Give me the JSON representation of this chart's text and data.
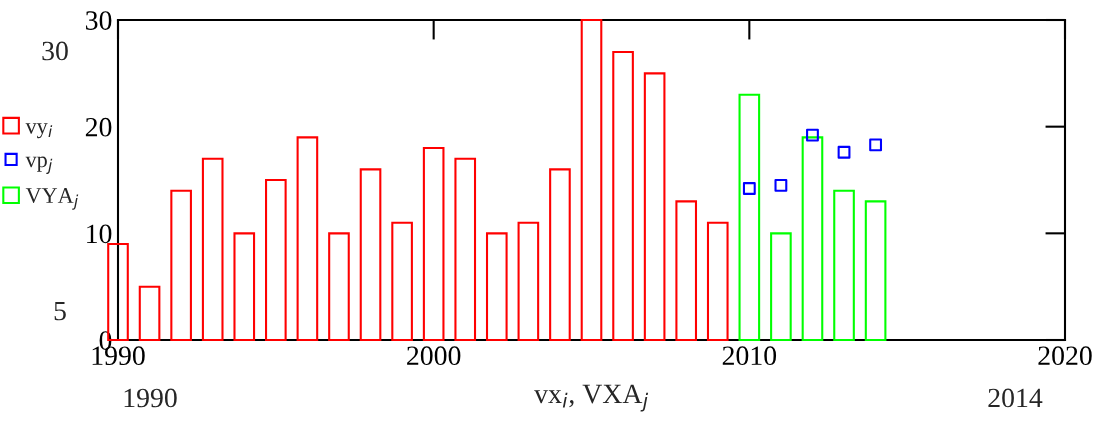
{
  "chart_data": {
    "type": "bar",
    "xlabel": "vx$_{i}$, VXA$_{j}$",
    "xlim": [
      1990,
      2020
    ],
    "xticks": [
      1990,
      2000,
      2010,
      2020
    ],
    "ylim": [
      0,
      30
    ],
    "yticks": [
      0,
      10,
      20,
      30
    ],
    "series": [
      {
        "name": "vy$_{i}$",
        "color": "#ff0000",
        "x": [
          1990,
          1991,
          1992,
          1993,
          1994,
          1995,
          1996,
          1997,
          1998,
          1999,
          2000,
          2001,
          2002,
          2003,
          2004,
          2005,
          2006,
          2007,
          2008,
          2009
        ],
        "values": [
          9,
          5,
          14,
          17,
          10,
          15,
          19,
          10,
          16,
          11,
          18,
          17,
          10,
          11,
          16,
          30,
          27,
          25,
          13,
          11
        ]
      },
      {
        "name": "vp$_{j}$",
        "type": "scatter",
        "marker": "square",
        "color": "#0000ff",
        "x": [
          2010,
          2011,
          2012,
          2013,
          2014
        ],
        "values": [
          14.2,
          14.5,
          19.2,
          17.6,
          18.3
        ]
      },
      {
        "name": "VYA$_{j}$",
        "color": "#00ff00",
        "x": [
          2010,
          2011,
          2012,
          2013,
          2014
        ],
        "values": [
          23,
          10,
          19,
          14,
          13
        ]
      }
    ],
    "legend": "left",
    "grid": false,
    "annotations": [
      "30",
      "5",
      "1990",
      "2014"
    ]
  }
}
